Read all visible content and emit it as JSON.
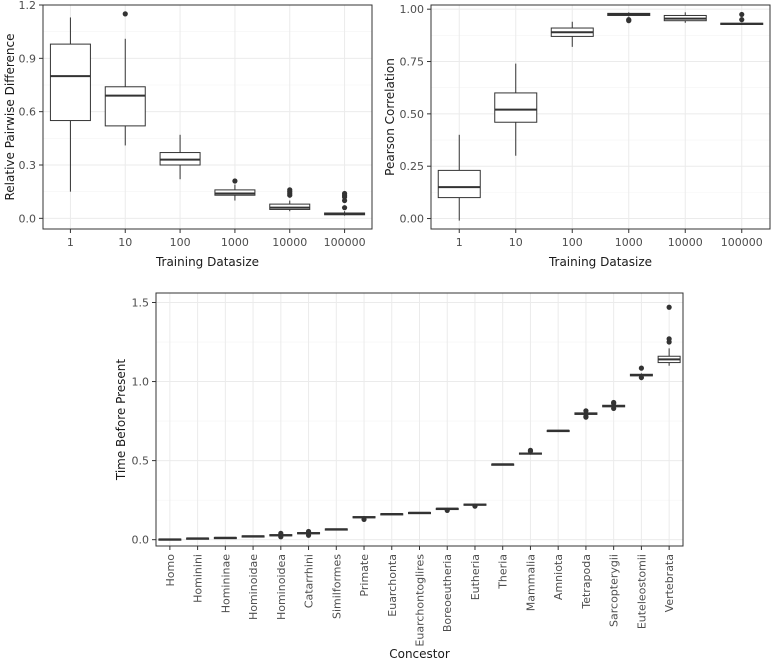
{
  "colors": {
    "box_outline": "#333333",
    "grid": "#ebebeb",
    "panel_border": "#333333",
    "outlier": "#333333"
  },
  "chart_data": [
    {
      "id": "panel-a",
      "type": "box",
      "title": "",
      "xlabel": "Training Datasize",
      "ylabel": "Relative Pairwise Difference",
      "ylim": [
        -0.06,
        1.2
      ],
      "yticks": [
        0.0,
        0.3,
        0.6,
        0.9,
        1.2
      ],
      "ytick_labels": [
        "0.0",
        "0.3",
        "0.6",
        "0.9",
        "1.2"
      ],
      "categories": [
        "1",
        "10",
        "100",
        "1000",
        "10000",
        "100000"
      ],
      "boxes": [
        {
          "category": "1",
          "whisker_low": 0.15,
          "q1": 0.55,
          "median": 0.8,
          "q3": 0.98,
          "whisker_high": 1.13,
          "outliers": []
        },
        {
          "category": "10",
          "whisker_low": 0.41,
          "q1": 0.52,
          "median": 0.69,
          "q3": 0.74,
          "whisker_high": 1.01,
          "outliers": [
            1.15
          ]
        },
        {
          "category": "100",
          "whisker_low": 0.22,
          "q1": 0.3,
          "median": 0.33,
          "q3": 0.37,
          "whisker_high": 0.47,
          "outliers": []
        },
        {
          "category": "1000",
          "whisker_low": 0.1,
          "q1": 0.13,
          "median": 0.14,
          "q3": 0.16,
          "whisker_high": 0.19,
          "outliers": [
            0.21
          ]
        },
        {
          "category": "10000",
          "whisker_low": 0.04,
          "q1": 0.05,
          "median": 0.06,
          "q3": 0.08,
          "whisker_high": 0.1,
          "outliers": [
            0.13,
            0.14,
            0.15,
            0.16
          ]
        },
        {
          "category": "100000",
          "whisker_low": 0.015,
          "q1": 0.02,
          "median": 0.025,
          "q3": 0.03,
          "whisker_high": 0.04,
          "outliers": [
            0.06,
            0.1,
            0.12,
            0.13,
            0.14
          ]
        }
      ]
    },
    {
      "id": "panel-b",
      "type": "box",
      "title": "",
      "xlabel": "Training Datasize",
      "ylabel": "Pearson Correlation",
      "ylim": [
        -0.05,
        1.02
      ],
      "yticks": [
        0.0,
        0.25,
        0.5,
        0.75,
        1.0
      ],
      "ytick_labels": [
        "0.00",
        "0.25",
        "0.50",
        "0.75",
        "1.00"
      ],
      "categories": [
        "1",
        "10",
        "100",
        "1000",
        "10000",
        "100000"
      ],
      "boxes": [
        {
          "category": "1",
          "whisker_low": -0.01,
          "q1": 0.1,
          "median": 0.15,
          "q3": 0.23,
          "whisker_high": 0.4,
          "outliers": []
        },
        {
          "category": "10",
          "whisker_low": 0.3,
          "q1": 0.46,
          "median": 0.52,
          "q3": 0.6,
          "whisker_high": 0.74,
          "outliers": []
        },
        {
          "category": "100",
          "whisker_low": 0.82,
          "q1": 0.87,
          "median": 0.89,
          "q3": 0.91,
          "whisker_high": 0.94,
          "outliers": []
        },
        {
          "category": "1000",
          "whisker_low": 0.965,
          "q1": 0.97,
          "median": 0.975,
          "q3": 0.98,
          "whisker_high": 0.985,
          "outliers": [
            0.95,
            0.945
          ]
        },
        {
          "category": "10000",
          "whisker_low": 0.935,
          "q1": 0.945,
          "median": 0.955,
          "q3": 0.97,
          "whisker_high": 0.985,
          "outliers": []
        },
        {
          "category": "100000",
          "whisker_low": 0.925,
          "q1": 0.927,
          "median": 0.93,
          "q3": 0.933,
          "whisker_high": 0.935,
          "outliers": [
            0.95,
            0.975
          ]
        }
      ]
    },
    {
      "id": "panel-c",
      "type": "box",
      "title": "",
      "xlabel": "Concestor",
      "ylabel": "Time Before Present",
      "ylim": [
        -0.04,
        1.56
      ],
      "yticks": [
        0.0,
        0.5,
        1.0,
        1.5
      ],
      "ytick_labels": [
        "0.0",
        "0.5",
        "1.0",
        "1.5"
      ],
      "categories": [
        "Homo",
        "Hominini",
        "Homininae",
        "Hominoidae",
        "Hominoidea",
        "Catarrhini",
        "Similformes",
        "Primate",
        "Euarchonta",
        "Euarchontoglires",
        "Boreoeutheria",
        "Eutheria",
        "Theria",
        "Mammalia",
        "Amniota",
        "Tetrapoda",
        "Sarcopterygii",
        "Euteleostomii",
        "Vertebrata"
      ],
      "boxes": [
        {
          "category": "Homo",
          "whisker_low": 0.0,
          "q1": 0.0,
          "median": 0.002,
          "q3": 0.004,
          "whisker_high": 0.006,
          "outliers": []
        },
        {
          "category": "Hominini",
          "whisker_low": 0.004,
          "q1": 0.006,
          "median": 0.008,
          "q3": 0.01,
          "whisker_high": 0.012,
          "outliers": []
        },
        {
          "category": "Homininae",
          "whisker_low": 0.008,
          "q1": 0.01,
          "median": 0.012,
          "q3": 0.014,
          "whisker_high": 0.016,
          "outliers": []
        },
        {
          "category": "Hominoidae",
          "whisker_low": 0.018,
          "q1": 0.02,
          "median": 0.022,
          "q3": 0.024,
          "whisker_high": 0.026,
          "outliers": []
        },
        {
          "category": "Hominoidea",
          "whisker_low": 0.02,
          "q1": 0.024,
          "median": 0.028,
          "q3": 0.032,
          "whisker_high": 0.036,
          "outliers": [
            0.018,
            0.04
          ]
        },
        {
          "category": "Catarrhini",
          "whisker_low": 0.03,
          "q1": 0.037,
          "median": 0.041,
          "q3": 0.045,
          "whisker_high": 0.05,
          "outliers": [
            0.028,
            0.052
          ]
        },
        {
          "category": "Similformes",
          "whisker_low": 0.062,
          "q1": 0.064,
          "median": 0.066,
          "q3": 0.068,
          "whisker_high": 0.07,
          "outliers": []
        },
        {
          "category": "Primate",
          "whisker_low": 0.13,
          "q1": 0.138,
          "median": 0.142,
          "q3": 0.146,
          "whisker_high": 0.15,
          "outliers": [
            0.128
          ]
        },
        {
          "category": "Euarchonta",
          "whisker_low": 0.16,
          "q1": 0.161,
          "median": 0.162,
          "q3": 0.164,
          "whisker_high": 0.165,
          "outliers": []
        },
        {
          "category": "Euarchontoglires",
          "whisker_low": 0.168,
          "q1": 0.169,
          "median": 0.17,
          "q3": 0.172,
          "whisker_high": 0.173,
          "outliers": []
        },
        {
          "category": "Boreoeutheria",
          "whisker_low": 0.19,
          "q1": 0.194,
          "median": 0.196,
          "q3": 0.198,
          "whisker_high": 0.2,
          "outliers": [
            0.185
          ]
        },
        {
          "category": "Eutheria",
          "whisker_low": 0.215,
          "q1": 0.219,
          "median": 0.222,
          "q3": 0.225,
          "whisker_high": 0.228,
          "outliers": [
            0.212
          ]
        },
        {
          "category": "Theria",
          "whisker_low": 0.475,
          "q1": 0.476,
          "median": 0.477,
          "q3": 0.478,
          "whisker_high": 0.479,
          "outliers": []
        },
        {
          "category": "Mammalia",
          "whisker_low": 0.538,
          "q1": 0.542,
          "median": 0.545,
          "q3": 0.548,
          "whisker_high": 0.552,
          "outliers": [
            0.56,
            0.565
          ]
        },
        {
          "category": "Amniota",
          "whisker_low": 0.688,
          "q1": 0.689,
          "median": 0.69,
          "q3": 0.691,
          "whisker_high": 0.692,
          "outliers": []
        },
        {
          "category": "Tetrapoda",
          "whisker_low": 0.785,
          "q1": 0.792,
          "median": 0.797,
          "q3": 0.802,
          "whisker_high": 0.81,
          "outliers": [
            0.775,
            0.78,
            0.815
          ]
        },
        {
          "category": "Sarcopterygii",
          "whisker_low": 0.835,
          "q1": 0.84,
          "median": 0.845,
          "q3": 0.85,
          "whisker_high": 0.855,
          "outliers": [
            0.83,
            0.862,
            0.868
          ]
        },
        {
          "category": "Euteleostomii",
          "whisker_low": 1.03,
          "q1": 1.036,
          "median": 1.041,
          "q3": 1.046,
          "whisker_high": 1.052,
          "outliers": [
            1.025,
            1.085
          ]
        },
        {
          "category": "Vertebrata",
          "whisker_low": 1.1,
          "q1": 1.12,
          "median": 1.14,
          "q3": 1.16,
          "whisker_high": 1.21,
          "outliers": [
            1.25,
            1.27,
            1.47
          ]
        }
      ]
    }
  ]
}
